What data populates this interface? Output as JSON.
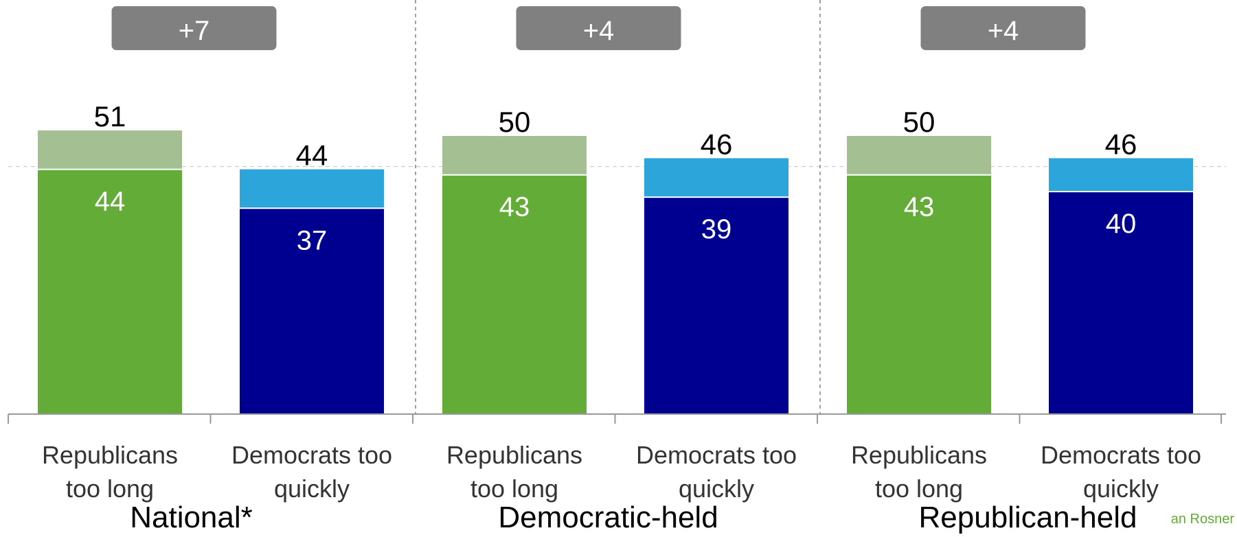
{
  "footer_text": "an Rosner",
  "colors": {
    "rep_total": "#A4C092",
    "rep_strong": "#62AC37",
    "dem_total": "#2CA5DA",
    "dem_strong": "#000090",
    "diff_badge": "#808080",
    "axis": "#999999"
  },
  "chart_data": {
    "type": "bar",
    "stacked": "overlay",
    "ylim": [
      0,
      100
    ],
    "groups": [
      {
        "label": "National*",
        "difference": "+7",
        "bars": [
          {
            "category": [
              "Republicans",
              "too long"
            ],
            "total": 51,
            "strong": 44,
            "party": "rep"
          },
          {
            "category": [
              "Democrats too",
              "quickly"
            ],
            "total": 44,
            "strong": 37,
            "party": "dem"
          }
        ]
      },
      {
        "label": "Democratic-held",
        "difference": "+4",
        "bars": [
          {
            "category": [
              "Republicans",
              "too long"
            ],
            "total": 50,
            "strong": 43,
            "party": "rep"
          },
          {
            "category": [
              "Democrats too",
              "quickly"
            ],
            "total": 46,
            "strong": 39,
            "party": "dem"
          }
        ]
      },
      {
        "label": "Republican-held",
        "difference": "+4",
        "bars": [
          {
            "category": [
              "Republicans",
              "too long"
            ],
            "total": 50,
            "strong": 43,
            "party": "rep"
          },
          {
            "category": [
              "Democrats too",
              "quickly"
            ],
            "total": 46,
            "strong": 40,
            "party": "dem"
          }
        ]
      }
    ]
  }
}
